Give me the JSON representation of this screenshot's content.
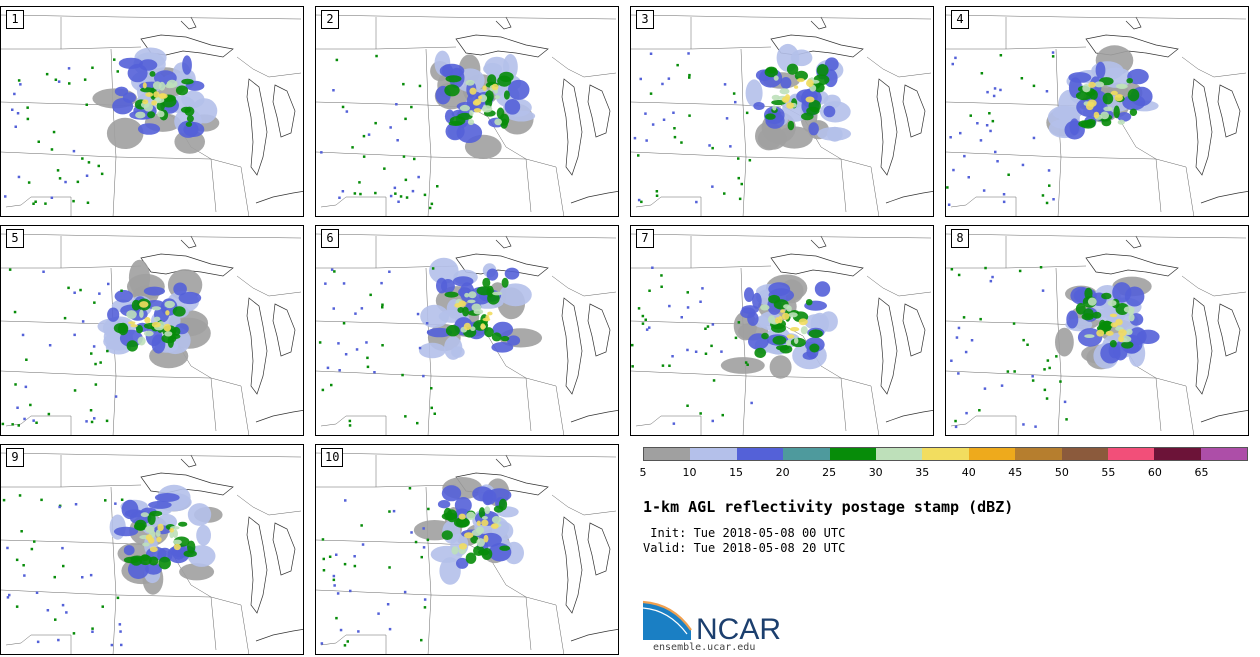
{
  "panels": [
    {
      "label": "1"
    },
    {
      "label": "2"
    },
    {
      "label": "3"
    },
    {
      "label": "4"
    },
    {
      "label": "5"
    },
    {
      "label": "6"
    },
    {
      "label": "7"
    },
    {
      "label": "8"
    },
    {
      "label": "9"
    },
    {
      "label": "10"
    }
  ],
  "colorbar": {
    "colors": [
      "#a0a0a0",
      "#b4c0ea",
      "#5461d8",
      "#4e9a9d",
      "#078c09",
      "#bee0ba",
      "#f2dd5f",
      "#eeaa1c",
      "#b67e2e",
      "#8b5a3c",
      "#f24f79",
      "#6c1338",
      "#ad4ea8"
    ],
    "ticks": [
      "5",
      "10",
      "15",
      "20",
      "25",
      "30",
      "35",
      "40",
      "45",
      "50",
      "55",
      "60",
      "65"
    ]
  },
  "title": "1-km AGL reflectivity postage stamp (dBZ)",
  "init_line": " Init: Tue 2018-05-08 00 UTC",
  "valid_line": "Valid: Tue 2018-05-08 20 UTC",
  "logo": {
    "name": "NCAR",
    "url": "ensemble.ucar.edu"
  }
}
